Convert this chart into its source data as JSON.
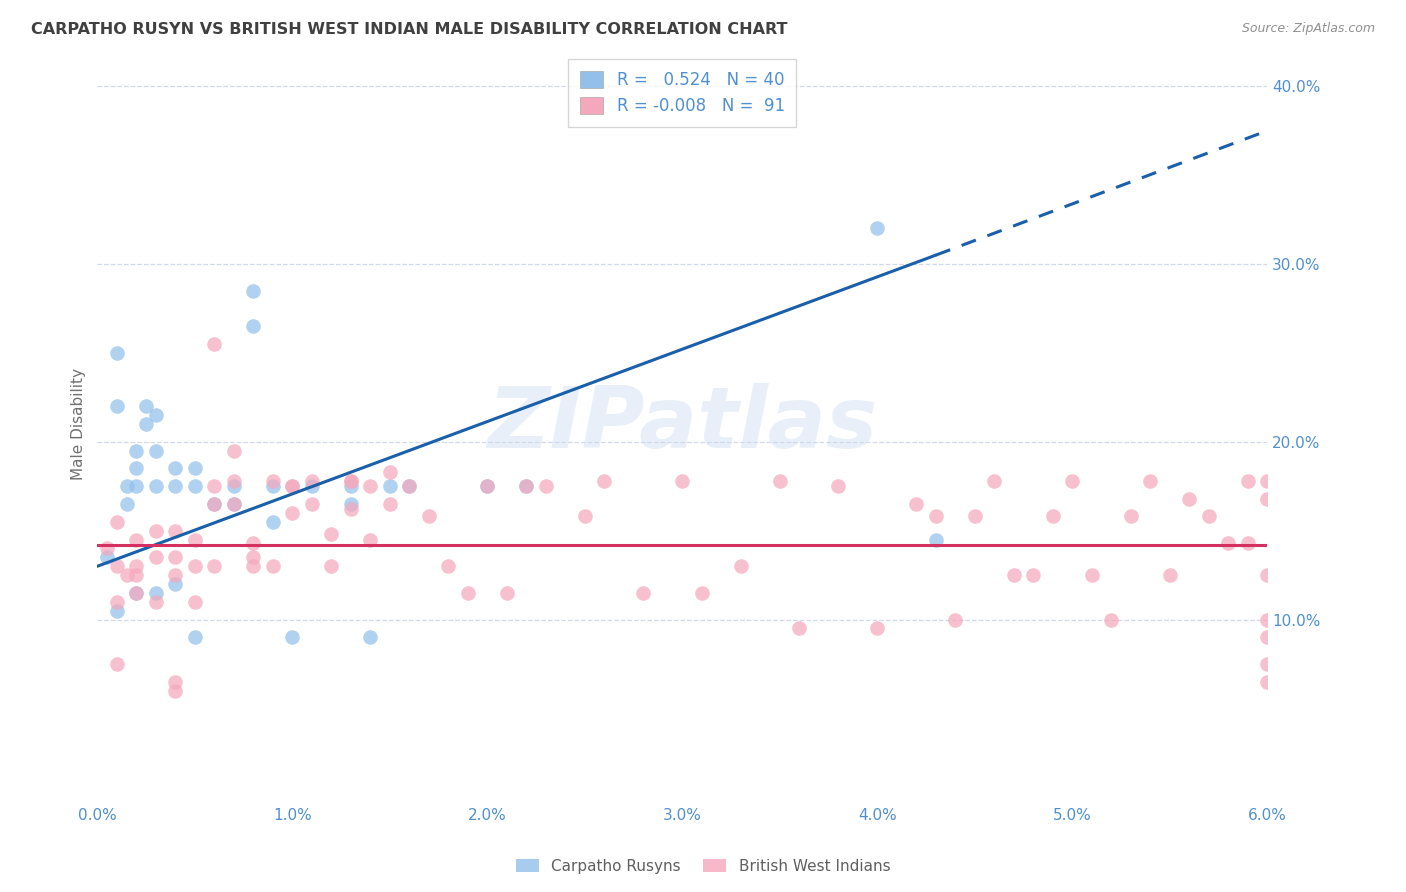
{
  "title": "CARPATHO RUSYN VS BRITISH WEST INDIAN MALE DISABILITY CORRELATION CHART",
  "source": "Source: ZipAtlas.com",
  "ylabel": "Male Disability",
  "legend_blue_R": "0.524",
  "legend_blue_N": "40",
  "legend_pink_R": "-0.008",
  "legend_pink_N": "91",
  "legend_blue_label": "Carpatho Rusyns",
  "legend_pink_label": "British West Indians",
  "watermark": "ZIPatlas",
  "blue_color": "#92c0ea",
  "pink_color": "#f5a8bc",
  "blue_line_color": "#1a5faa",
  "pink_line_color": "#d43060",
  "title_color": "#404040",
  "axis_color": "#5090d0",
  "background_color": "#ffffff",
  "grid_color": "#d0d8ea",
  "xlim": [
    0.0,
    0.06
  ],
  "ylim": [
    0.0,
    0.42
  ],
  "blue_line_x0": 0.0,
  "blue_line_y0": 0.13,
  "blue_line_x1": 0.043,
  "blue_line_y1": 0.305,
  "blue_line_dash_x1": 0.06,
  "blue_line_dash_y1": 0.375,
  "pink_line_x0": 0.0,
  "pink_line_y0": 0.142,
  "pink_line_x1": 0.06,
  "pink_line_y1": 0.142,
  "blue_scatter_x": [
    0.0005,
    0.001,
    0.001,
    0.001,
    0.0015,
    0.0015,
    0.002,
    0.002,
    0.002,
    0.002,
    0.0025,
    0.0025,
    0.003,
    0.003,
    0.003,
    0.003,
    0.004,
    0.004,
    0.004,
    0.005,
    0.005,
    0.005,
    0.006,
    0.007,
    0.007,
    0.008,
    0.008,
    0.009,
    0.009,
    0.01,
    0.011,
    0.013,
    0.013,
    0.014,
    0.015,
    0.016,
    0.02,
    0.022,
    0.04,
    0.043
  ],
  "blue_scatter_y": [
    0.135,
    0.25,
    0.22,
    0.105,
    0.175,
    0.165,
    0.195,
    0.185,
    0.175,
    0.115,
    0.22,
    0.21,
    0.215,
    0.195,
    0.175,
    0.115,
    0.185,
    0.175,
    0.12,
    0.185,
    0.175,
    0.09,
    0.165,
    0.175,
    0.165,
    0.285,
    0.265,
    0.175,
    0.155,
    0.09,
    0.175,
    0.175,
    0.165,
    0.09,
    0.175,
    0.175,
    0.175,
    0.175,
    0.32,
    0.145
  ],
  "pink_scatter_x": [
    0.0005,
    0.001,
    0.001,
    0.001,
    0.0015,
    0.002,
    0.002,
    0.002,
    0.003,
    0.003,
    0.003,
    0.004,
    0.004,
    0.004,
    0.004,
    0.005,
    0.005,
    0.005,
    0.006,
    0.006,
    0.007,
    0.007,
    0.007,
    0.008,
    0.008,
    0.009,
    0.009,
    0.01,
    0.01,
    0.011,
    0.011,
    0.012,
    0.012,
    0.013,
    0.013,
    0.014,
    0.015,
    0.015,
    0.016,
    0.017,
    0.018,
    0.019,
    0.02,
    0.021,
    0.022,
    0.023,
    0.025,
    0.026,
    0.028,
    0.03,
    0.031,
    0.033,
    0.035,
    0.036,
    0.038,
    0.04,
    0.042,
    0.043,
    0.044,
    0.045,
    0.046,
    0.047,
    0.048,
    0.049,
    0.05,
    0.051,
    0.052,
    0.053,
    0.054,
    0.055,
    0.056,
    0.057,
    0.058,
    0.059,
    0.059,
    0.06,
    0.06,
    0.06,
    0.06,
    0.06,
    0.001,
    0.002,
    0.004,
    0.006,
    0.006,
    0.008,
    0.01,
    0.013,
    0.014,
    0.06,
    0.06
  ],
  "pink_scatter_y": [
    0.14,
    0.155,
    0.13,
    0.11,
    0.125,
    0.145,
    0.125,
    0.115,
    0.15,
    0.135,
    0.11,
    0.15,
    0.135,
    0.125,
    0.06,
    0.145,
    0.13,
    0.11,
    0.255,
    0.165,
    0.195,
    0.178,
    0.165,
    0.143,
    0.13,
    0.178,
    0.13,
    0.175,
    0.16,
    0.178,
    0.165,
    0.148,
    0.13,
    0.178,
    0.162,
    0.175,
    0.183,
    0.165,
    0.175,
    0.158,
    0.13,
    0.115,
    0.175,
    0.115,
    0.175,
    0.175,
    0.158,
    0.178,
    0.115,
    0.178,
    0.115,
    0.13,
    0.178,
    0.095,
    0.175,
    0.095,
    0.165,
    0.158,
    0.1,
    0.158,
    0.178,
    0.125,
    0.125,
    0.158,
    0.178,
    0.125,
    0.1,
    0.158,
    0.178,
    0.125,
    0.168,
    0.158,
    0.143,
    0.143,
    0.178,
    0.125,
    0.1,
    0.075,
    0.168,
    0.09,
    0.075,
    0.13,
    0.065,
    0.175,
    0.13,
    0.135,
    0.175,
    0.178,
    0.145,
    0.178,
    0.065
  ]
}
